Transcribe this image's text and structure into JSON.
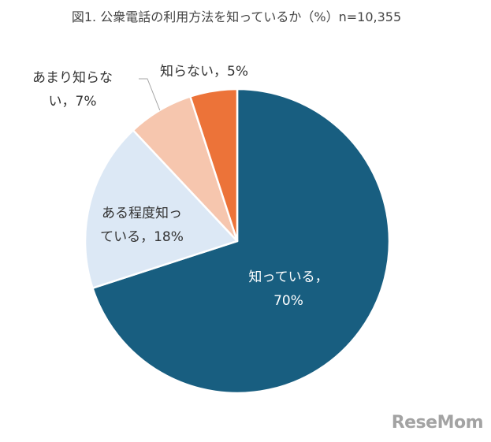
{
  "chart_data": {
    "type": "pie",
    "title": "図1. 公衆電話の利用方法を知っているか（%）n=10,355",
    "categories": [
      "知っている",
      "ある程度知っている",
      "あまり知らない",
      "知らない"
    ],
    "values": [
      70,
      18,
      7,
      5
    ],
    "value_labels": [
      "70%",
      "18%",
      "7%",
      "5%"
    ],
    "colors": [
      "#185E80",
      "#DCE8F5",
      "#F6C6AE",
      "#EC7339"
    ],
    "label_lines": [
      [
        "知っている，",
        "70%"
      ],
      [
        "ある程度知っ",
        "ている，18%"
      ],
      [
        "あまり知らな",
        "い，7%"
      ],
      [
        "知らない，5%"
      ]
    ],
    "start_angle_deg": 0,
    "direction": "clockwise",
    "legend": "none"
  },
  "watermark": {
    "text": "ReseMom"
  }
}
